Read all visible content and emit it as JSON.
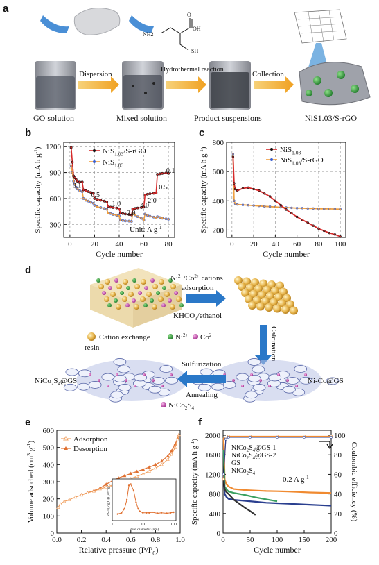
{
  "panel_labels": {
    "a": "a",
    "b": "b",
    "c": "c",
    "d": "d",
    "e": "e",
    "f": "f"
  },
  "panel_a": {
    "arrow_labels": [
      "Dispersion",
      "Hydrothermal reaction",
      "Collection"
    ],
    "captions": [
      "GO solution",
      "Mixed solution",
      "Product suspensions",
      "NiS1.03/S-rGO"
    ],
    "molecule": {
      "nh": "NH2",
      "oh": "OH",
      "sh": "SH",
      "o": "O"
    }
  },
  "panel_d": {
    "top_arrow_label": "Ni2+/Co2+ cations adsorption",
    "bottom_arrow_label": "KHCO3/ethanol",
    "down_arrow_label": "Calcination",
    "left_arrow_top": "Sulfurization",
    "left_arrow_bottom": "Annealing",
    "legend_resin": "Cation exchange resin",
    "legend_ni": "Ni2+",
    "legend_co": "Co2+",
    "label_left": "NiCo2S4@GS",
    "label_right": "Ni-Co@GS",
    "legend_nicos": "NiCo2S4"
  },
  "chart_data": [
    {
      "panel": "b",
      "type": "line",
      "xlabel": "Cycle number",
      "ylabel": "Specific capacity (mA h g-1)",
      "xlim": [
        -5,
        85
      ],
      "ylim": [
        150,
        1250
      ],
      "xticks": [
        0,
        20,
        40,
        60,
        80
      ],
      "yticks": [
        300,
        600,
        900,
        1200
      ],
      "unit_note": "Unit: A g-1",
      "rate_labels": [
        "0.1",
        "0.5",
        "1.0",
        "2.0",
        "4.0",
        "2.0",
        "0.5",
        "0.1"
      ],
      "legend": [
        "NiS1.03/S-rGO",
        "NiS1.03"
      ],
      "series": [
        {
          "name": "NiS1.03/S-rGO",
          "color": "#d62a2a",
          "marker": "#111111",
          "x": [
            1,
            2,
            3,
            4,
            5,
            6,
            8,
            10,
            11,
            13,
            15,
            17,
            19,
            20,
            22,
            25,
            28,
            30,
            31,
            33,
            35,
            38,
            40,
            41,
            43,
            45,
            48,
            50,
            51,
            53,
            55,
            58,
            60,
            61,
            63,
            65,
            68,
            70,
            71,
            73,
            75,
            78,
            80
          ],
          "y": [
            1190,
            1020,
            860,
            840,
            820,
            800,
            790,
            790,
            700,
            690,
            680,
            670,
            660,
            600,
            590,
            580,
            570,
            560,
            510,
            500,
            495,
            490,
            480,
            430,
            425,
            420,
            415,
            410,
            480,
            485,
            490,
            495,
            500,
            640,
            650,
            655,
            660,
            665,
            880,
            885,
            890,
            895,
            890
          ]
        },
        {
          "name": "NiS1.03",
          "color": "#f0a040",
          "marker": "#3a5fd0",
          "x": [
            1,
            2,
            3,
            4,
            5,
            6,
            8,
            10,
            11,
            13,
            15,
            17,
            19,
            20,
            22,
            25,
            28,
            30,
            31,
            33,
            35,
            38,
            40,
            41,
            43,
            45,
            48,
            50,
            51,
            53,
            55,
            58,
            60,
            61,
            63,
            65,
            68,
            70,
            71,
            73,
            75,
            78,
            80
          ],
          "y": [
            980,
            900,
            800,
            760,
            730,
            710,
            690,
            680,
            600,
            580,
            570,
            555,
            545,
            520,
            505,
            495,
            485,
            475,
            430,
            425,
            415,
            405,
            400,
            350,
            345,
            340,
            338,
            335,
            430,
            410,
            390,
            370,
            350,
            420,
            405,
            395,
            385,
            375,
            390,
            380,
            372,
            365,
            360
          ]
        }
      ]
    },
    {
      "panel": "c",
      "type": "line",
      "xlabel": "Cycle number",
      "ylabel": "Specific capacity (mA h g-1)",
      "xlim": [
        -5,
        105
      ],
      "ylim": [
        150,
        800
      ],
      "xticks": [
        0,
        20,
        40,
        60,
        80,
        100
      ],
      "yticks": [
        200,
        400,
        600,
        800
      ],
      "legend": [
        "NiS1.03",
        "NiS1.03/S-rGO"
      ],
      "series": [
        {
          "name": "NiS1.03",
          "color": "#d62a2a",
          "marker": "#111111",
          "x": [
            1,
            2,
            3,
            5,
            10,
            15,
            20,
            25,
            30,
            35,
            40,
            45,
            50,
            55,
            60,
            65,
            70,
            75,
            80,
            85,
            90,
            95,
            100
          ],
          "y": [
            700,
            520,
            480,
            470,
            485,
            490,
            480,
            470,
            450,
            430,
            400,
            370,
            340,
            315,
            290,
            270,
            250,
            230,
            210,
            195,
            180,
            170,
            155
          ]
        },
        {
          "name": "NiS1.03/S-rGO",
          "color": "#f0a040",
          "marker": "#3a5fd0",
          "x": [
            1,
            2,
            3,
            5,
            10,
            15,
            20,
            25,
            30,
            35,
            40,
            45,
            50,
            55,
            60,
            65,
            70,
            75,
            80,
            85,
            90,
            95,
            100
          ],
          "y": [
            720,
            400,
            380,
            375,
            372,
            370,
            368,
            365,
            362,
            360,
            358,
            356,
            354,
            352,
            350,
            350,
            348,
            348,
            346,
            345,
            345,
            344,
            343
          ]
        }
      ]
    },
    {
      "panel": "e",
      "type": "line",
      "xlabel": "Relative pressure (P/P0)",
      "ylabel": "Volume adsorbed (cm3 g-1)",
      "xlim": [
        0,
        1.0
      ],
      "ylim": [
        0,
        600
      ],
      "xticks": [
        0.0,
        0.2,
        0.4,
        0.6,
        0.8,
        1.0
      ],
      "yticks": [
        0,
        100,
        200,
        300,
        400,
        500,
        600
      ],
      "legend": [
        "Adsorption",
        "Desorption"
      ],
      "series": [
        {
          "name": "Adsorption",
          "color": "#f0a060",
          "x": [
            0.01,
            0.03,
            0.06,
            0.1,
            0.15,
            0.2,
            0.25,
            0.3,
            0.35,
            0.4,
            0.45,
            0.5,
            0.55,
            0.6,
            0.65,
            0.7,
            0.75,
            0.8,
            0.85,
            0.9,
            0.93,
            0.96,
            0.98,
            0.99
          ],
          "y": [
            150,
            170,
            185,
            195,
            210,
            222,
            235,
            245,
            258,
            268,
            280,
            292,
            305,
            318,
            332,
            345,
            362,
            380,
            400,
            430,
            460,
            500,
            545,
            575
          ]
        },
        {
          "name": "Desorption",
          "color": "#e07030",
          "x": [
            0.99,
            0.98,
            0.96,
            0.93,
            0.9,
            0.85,
            0.8,
            0.75,
            0.7,
            0.65,
            0.6,
            0.55,
            0.5,
            0.45,
            0.4,
            0.35,
            0.3,
            0.25,
            0.2
          ],
          "y": [
            575,
            555,
            520,
            480,
            450,
            420,
            400,
            385,
            372,
            360,
            348,
            335,
            322,
            305,
            285,
            262,
            248,
            236,
            224
          ]
        }
      ],
      "inset": {
        "xlabel": "Pore diameter (nm)",
        "ylabel": "dV/d(log(D)) (cm3 g-1)",
        "xticks": [
          "1",
          "10",
          "100"
        ],
        "x": [
          1.5,
          2,
          2.5,
          3,
          3.5,
          4,
          5,
          6,
          7,
          8,
          10,
          13,
          16,
          20,
          30,
          40,
          60,
          80,
          100
        ],
        "y": [
          0.25,
          0.3,
          0.45,
          0.8,
          1.35,
          1.4,
          1.15,
          0.7,
          0.45,
          0.35,
          0.3,
          0.3,
          0.3,
          0.32,
          0.28,
          0.3,
          0.28,
          0.3,
          0.32
        ]
      }
    },
    {
      "panel": "f",
      "type": "line",
      "xlabel": "Cycle number",
      "ylabel": "Specific capacity (mA h g-1)",
      "y2label": "Coulombic efficiency (%)",
      "xlim": [
        0,
        200
      ],
      "ylim": [
        0,
        2100
      ],
      "y2lim": [
        0,
        105
      ],
      "xticks": [
        0,
        50,
        100,
        150,
        200
      ],
      "yticks": [
        0,
        400,
        800,
        1200,
        1600,
        2000
      ],
      "y2ticks": [
        0,
        20,
        40,
        60,
        80,
        100
      ],
      "annotation": "0.2 A g-1",
      "legend": [
        "NiCo2S4@GS-1",
        "NiCo2S4@GS-2",
        "GS",
        "NiCo2S4"
      ],
      "series": [
        {
          "name": "NiCo2S4@GS-1",
          "color": "#f08a30",
          "x": [
            1,
            3,
            6,
            10,
            20,
            40,
            60,
            80,
            100,
            120,
            140,
            160,
            180,
            200
          ],
          "y": [
            1950,
            1100,
            1000,
            950,
            900,
            880,
            870,
            860,
            855,
            850,
            840,
            830,
            825,
            820
          ]
        },
        {
          "name": "NiCo2S4@GS-2",
          "color": "#3aa060",
          "x": [
            1,
            3,
            6,
            10,
            20,
            40,
            60,
            80,
            100
          ],
          "y": [
            1700,
            950,
            900,
            850,
            820,
            780,
            730,
            690,
            650
          ]
        },
        {
          "name": "GS",
          "color": "#2a3f8f",
          "x": [
            1,
            3,
            6,
            10,
            20,
            40,
            60,
            80,
            100,
            120,
            140,
            160,
            180,
            200
          ],
          "y": [
            1200,
            800,
            740,
            700,
            680,
            660,
            640,
            620,
            610,
            600,
            590,
            580,
            570,
            560
          ]
        },
        {
          "name": "NiCo2S4",
          "color": "#333333",
          "x": [
            1,
            3,
            6,
            10,
            15,
            20,
            30,
            40,
            50,
            60
          ],
          "y": [
            1100,
            900,
            840,
            800,
            740,
            680,
            600,
            520,
            450,
            370
          ]
        }
      ],
      "ce_series": [
        {
          "name": "NiCo2S4@GS-1",
          "color": "#f08a30",
          "x": [
            1,
            5,
            10,
            50,
            100,
            150,
            200
          ],
          "y": [
            55,
            97,
            99,
            99,
            99,
            99,
            99
          ]
        },
        {
          "name": "GS",
          "color": "#2a3f8f",
          "x": [
            1,
            5,
            10,
            50,
            100,
            150,
            200
          ],
          "y": [
            60,
            96,
            98,
            98,
            98,
            98,
            98
          ]
        }
      ]
    }
  ]
}
